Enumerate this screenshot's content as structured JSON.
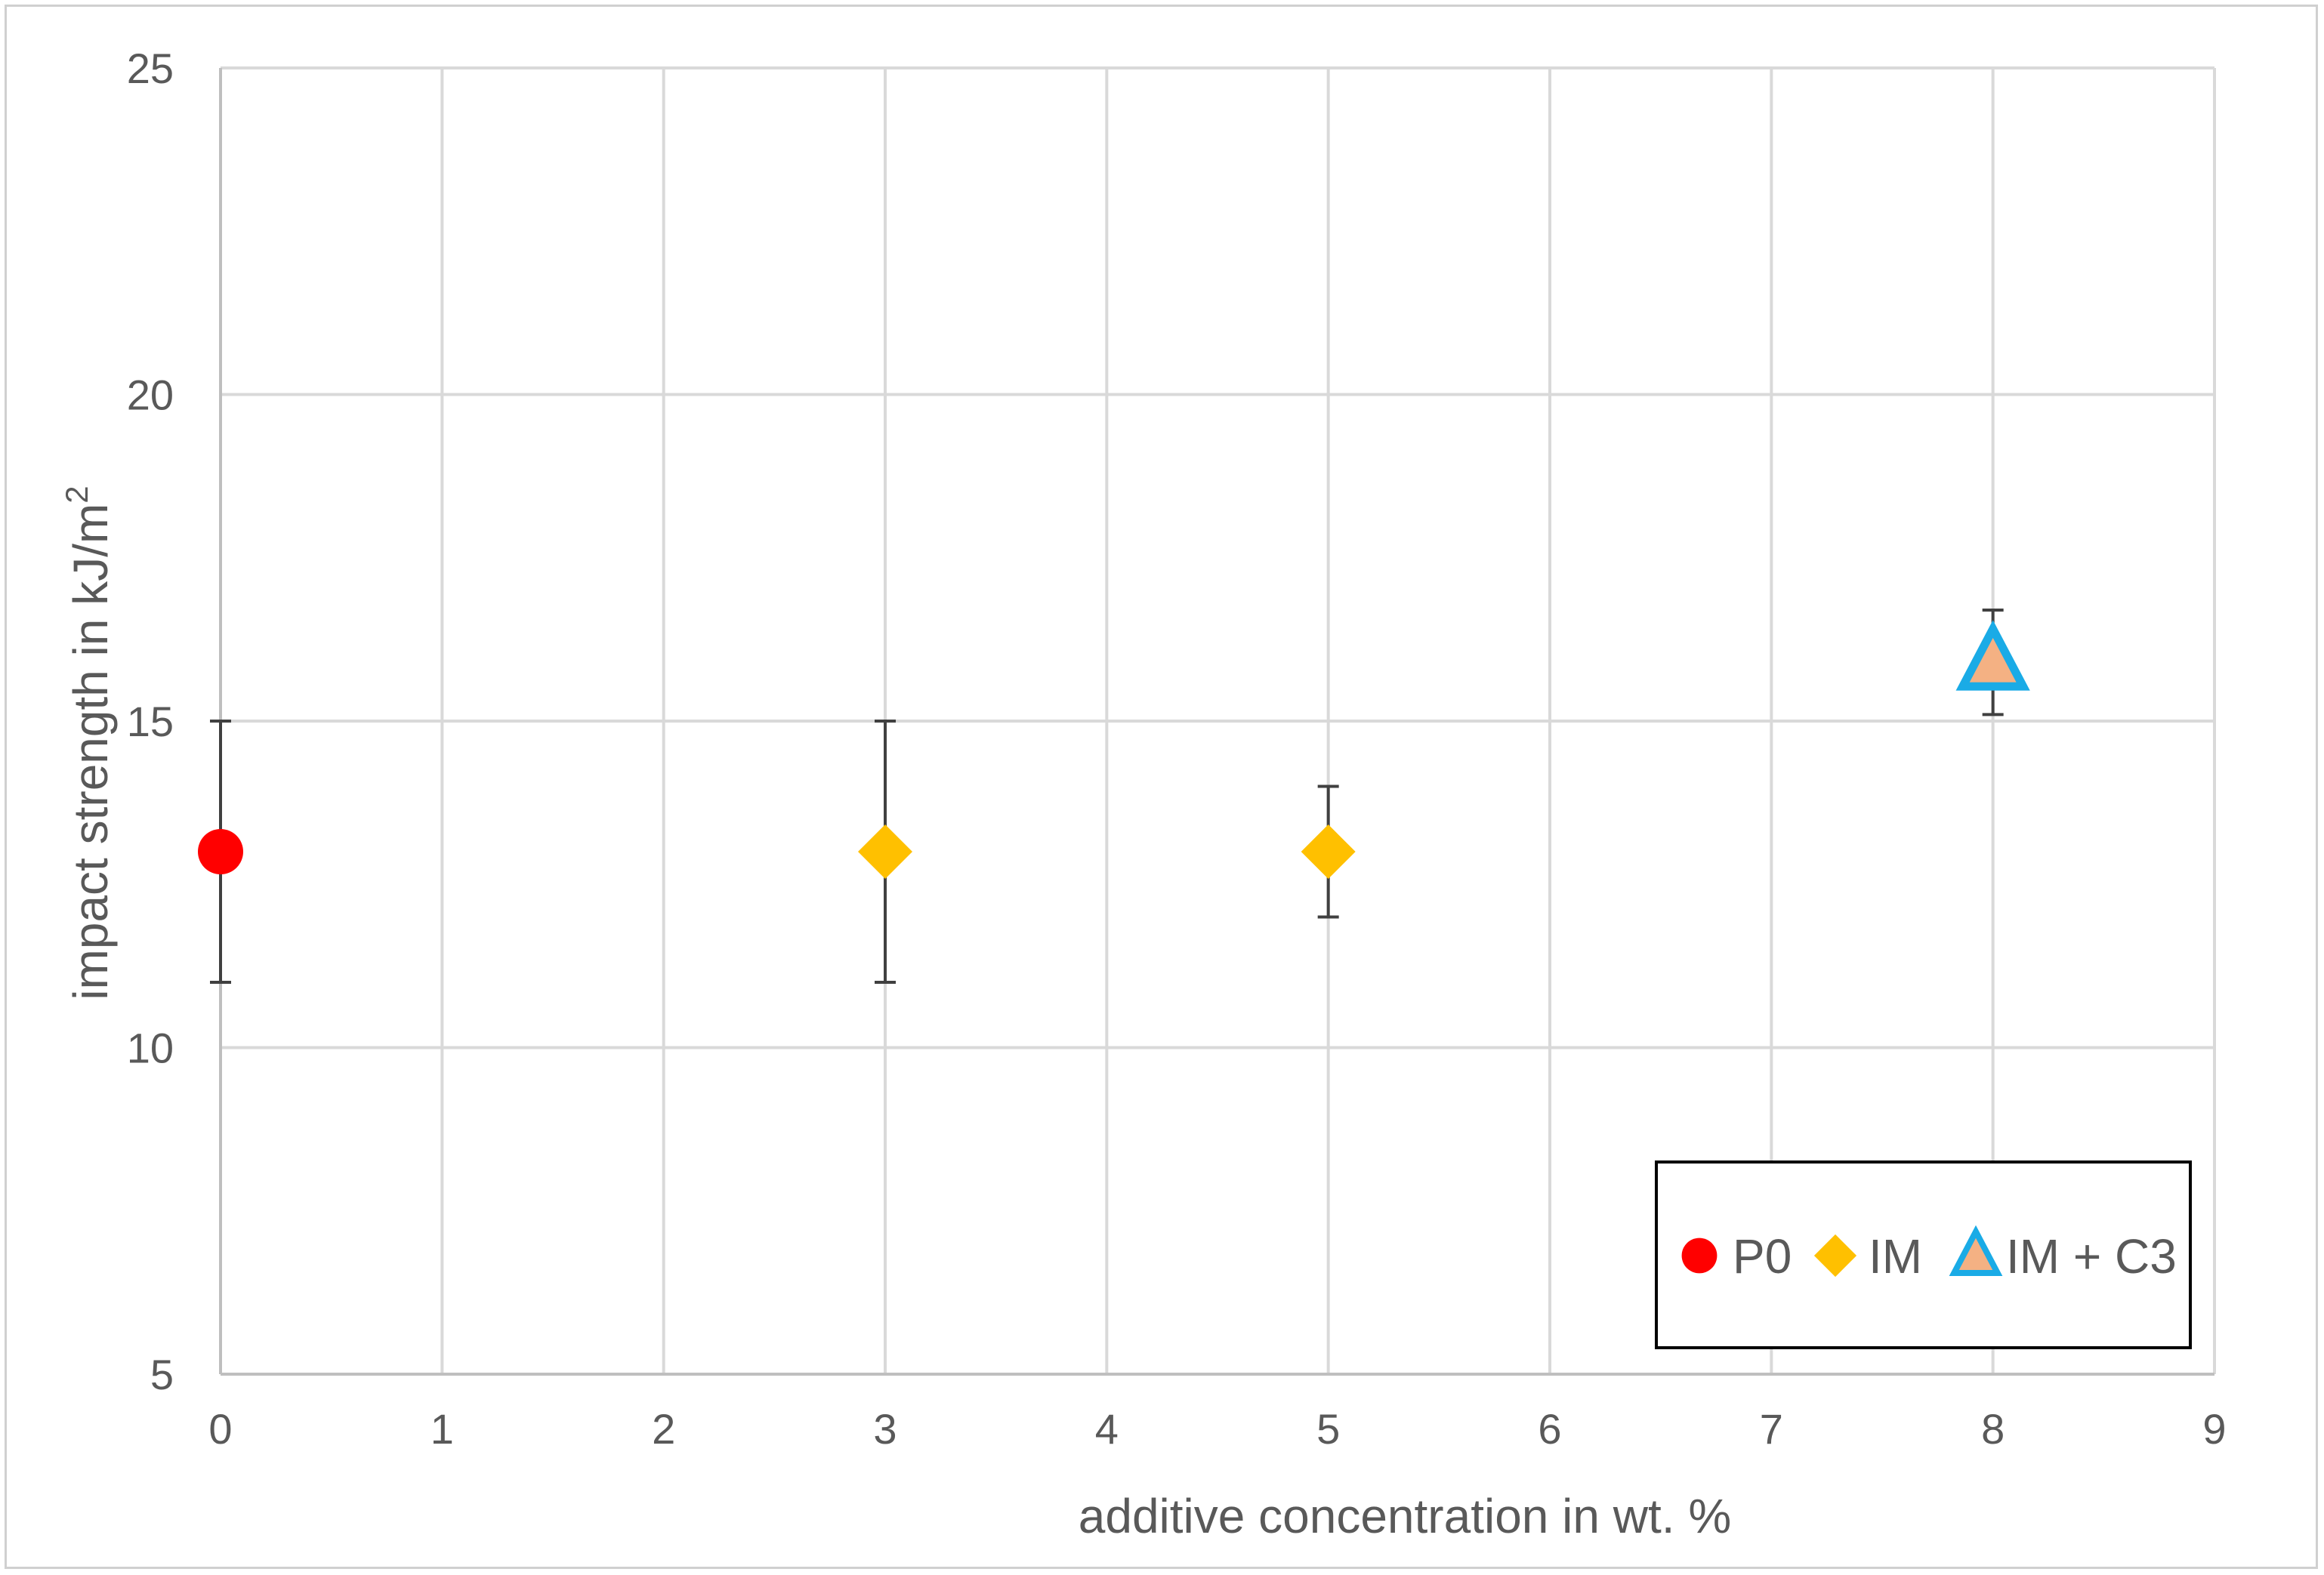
{
  "chart_data": {
    "type": "scatter",
    "title": "",
    "xlabel": "additive concentration in wt. %",
    "ylabel": "impact strength in kJ/m",
    "ylabel_superscript": "2",
    "xlim": [
      0,
      9
    ],
    "ylim": [
      5,
      25
    ],
    "x_ticks": [
      "0",
      "1",
      "2",
      "3",
      "4",
      "5",
      "6",
      "7",
      "8",
      "9"
    ],
    "y_ticks": [
      "5",
      "10",
      "15",
      "20",
      "25"
    ],
    "grid": true,
    "legend_position": "bottom-right",
    "series": [
      {
        "name": "P0",
        "marker": "circle",
        "color": "#ff0000",
        "points": [
          {
            "x": 0,
            "y": 13,
            "err_low": 11,
            "err_high": 15
          }
        ]
      },
      {
        "name": "IM",
        "marker": "diamond",
        "color": "#ffc000",
        "points": [
          {
            "x": 3,
            "y": 13,
            "err_low": 11,
            "err_high": 15
          },
          {
            "x": 5,
            "y": 13,
            "err_low": 12,
            "err_high": 14
          }
        ]
      },
      {
        "name": "IM + C3",
        "marker": "triangle",
        "color": "#f4b183",
        "edge_color": "#1aabe6",
        "points": [
          {
            "x": 8,
            "y": 15.9,
            "err_low": 15.1,
            "err_high": 16.7
          }
        ]
      }
    ]
  }
}
